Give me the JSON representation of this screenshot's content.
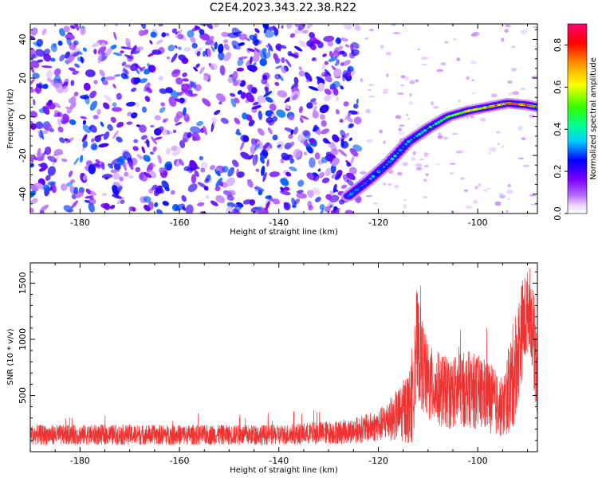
{
  "figure": {
    "title": "C2E4.2023.343.22.38.R22"
  },
  "chart_data": [
    {
      "type": "heatmap",
      "xlabel": "Height of straight line (km)",
      "ylabel": "Frequency (Hz)",
      "xlim": [
        -190,
        -88
      ],
      "ylim": [
        -50,
        48
      ],
      "x_ticks": [
        -180,
        -160,
        -140,
        -120,
        -100
      ],
      "y_ticks": [
        -40,
        -20,
        0,
        20,
        40
      ],
      "colorbar": {
        "label": "Normalized spectral amplitude",
        "range": [
          0.0,
          0.9
        ],
        "ticks": [
          0.0,
          0.2,
          0.4,
          0.6,
          0.8
        ]
      },
      "noise_region": {
        "x_range": [
          -190,
          -124
        ],
        "amplitude_range": [
          0.05,
          0.3
        ]
      },
      "signal_track": [
        {
          "x": -126,
          "y": -41,
          "amplitude": 0.3
        },
        {
          "x": -122,
          "y": -33,
          "amplitude": 0.3
        },
        {
          "x": -118,
          "y": -24,
          "amplitude": 0.35
        },
        {
          "x": -114,
          "y": -13,
          "amplitude": 0.4
        },
        {
          "x": -110,
          "y": -6,
          "amplitude": 0.45
        },
        {
          "x": -106,
          "y": 0,
          "amplitude": 0.55
        },
        {
          "x": -102,
          "y": 3,
          "amplitude": 0.65
        },
        {
          "x": -98,
          "y": 5,
          "amplitude": 0.75
        },
        {
          "x": -94,
          "y": 7,
          "amplitude": 0.8
        },
        {
          "x": -90,
          "y": 6,
          "amplitude": 0.85
        },
        {
          "x": -88,
          "y": 5,
          "amplitude": 0.6
        }
      ],
      "color": "#7b00ff"
    },
    {
      "type": "line",
      "xlabel": "Height of straight line (km)",
      "ylabel": "SNR (10 * v/v)",
      "xlim": [
        -190,
        -88
      ],
      "ylim": [
        0,
        1680
      ],
      "x_ticks": [
        -180,
        -160,
        -140,
        -120,
        -100
      ],
      "y_ticks": [
        500,
        1000,
        1500
      ],
      "series": [
        {
          "color": "#ee3333",
          "envelope": [
            {
              "x": -190,
              "mean": 150,
              "amp": 90
            },
            {
              "x": -140,
              "mean": 150,
              "amp": 90
            },
            {
              "x": -126,
              "mean": 180,
              "amp": 110
            },
            {
              "x": -120,
              "mean": 230,
              "amp": 140
            },
            {
              "x": -116,
              "mean": 330,
              "amp": 230
            },
            {
              "x": -113,
              "mean": 430,
              "amp": 380
            },
            {
              "x": -112.5,
              "mean": 1000,
              "amp": 500
            },
            {
              "x": -110,
              "mean": 600,
              "amp": 350
            },
            {
              "x": -106,
              "mean": 520,
              "amp": 320
            },
            {
              "x": -102,
              "mean": 560,
              "amp": 340
            },
            {
              "x": -98,
              "mean": 500,
              "amp": 330
            },
            {
              "x": -95,
              "mean": 380,
              "amp": 260
            },
            {
              "x": -93,
              "mean": 650,
              "amp": 480
            },
            {
              "x": -91,
              "mean": 1100,
              "amp": 450
            },
            {
              "x": -89.5,
              "mean": 1300,
              "amp": 350
            },
            {
              "x": -88,
              "mean": 700,
              "amp": 500
            }
          ]
        }
      ]
    }
  ]
}
